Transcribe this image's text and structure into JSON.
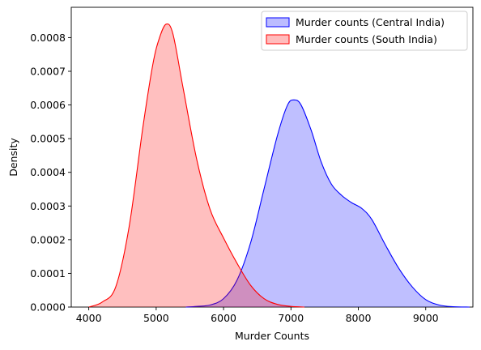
{
  "chart_data": {
    "type": "area",
    "subtype": "kde-density",
    "xlabel": "Murder Counts",
    "ylabel": "Density",
    "xlim": [
      3740,
      9700
    ],
    "ylim": [
      0,
      0.00089
    ],
    "xticks": [
      4000,
      5000,
      6000,
      7000,
      8000,
      9000
    ],
    "xtick_labels": [
      "4000",
      "5000",
      "6000",
      "7000",
      "8000",
      "9000"
    ],
    "yticks": [
      0,
      0.0001,
      0.0002,
      0.0003,
      0.0004,
      0.0005,
      0.0006,
      0.0007,
      0.0008
    ],
    "ytick_labels": [
      "0.0000",
      "0.0001",
      "0.0002",
      "0.0003",
      "0.0004",
      "0.0005",
      "0.0006",
      "0.0007",
      "0.0008"
    ],
    "grid": false,
    "legend_position": "top-right",
    "series": [
      {
        "name": "Murder counts (Central India)",
        "color": "#0000ff",
        "fill": "#bcbcff",
        "x": [
          5440,
          5600,
          5800,
          6000,
          6200,
          6400,
          6600,
          6800,
          6950,
          7050,
          7150,
          7300,
          7450,
          7600,
          7750,
          7900,
          8050,
          8200,
          8400,
          8600,
          8800,
          9000,
          9200,
          9400,
          9650
        ],
        "y": [
          0,
          2e-06,
          6e-06,
          2.5e-05,
          8e-05,
          0.00019,
          0.00035,
          0.00051,
          0.0006,
          0.000615,
          0.0006,
          0.000525,
          0.00043,
          0.000365,
          0.000332,
          0.00031,
          0.000293,
          0.00026,
          0.000185,
          0.000115,
          6e-05,
          2.2e-05,
          6e-06,
          1e-06,
          0
        ]
      },
      {
        "name": "Murder counts (South India)",
        "color": "#ff0000",
        "fill": "#ffbcbc",
        "x": [
          4000,
          4200,
          4400,
          4600,
          4800,
          4950,
          5050,
          5150,
          5250,
          5400,
          5600,
          5800,
          6000,
          6200,
          6400,
          6600,
          6800,
          7000,
          7200
        ],
        "y": [
          0,
          1.5e-05,
          6e-05,
          0.00024,
          0.00053,
          0.00072,
          0.0008,
          0.00084,
          0.00081,
          0.00065,
          0.00044,
          0.00029,
          0.000205,
          0.00013,
          6.5e-05,
          2.5e-05,
          8e-06,
          2e-06,
          0
        ]
      }
    ]
  }
}
